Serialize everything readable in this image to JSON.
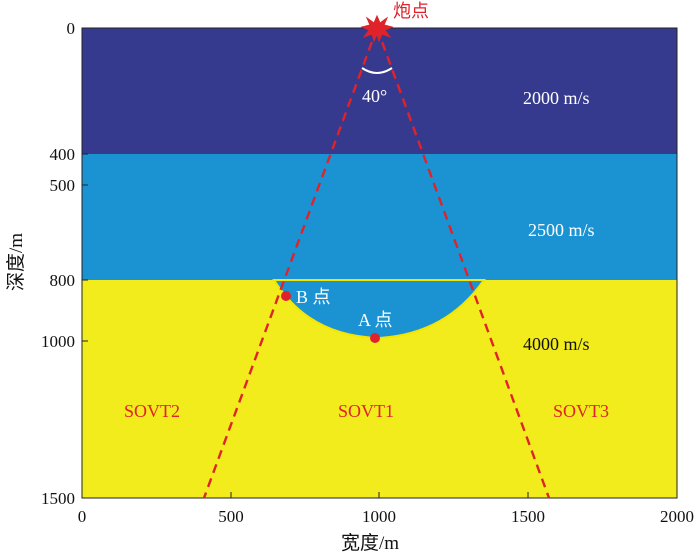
{
  "figure": {
    "source_label": "炮点",
    "angle_label": "40°",
    "point_a_label": "A 点",
    "point_b_label": "B 点",
    "x_axis_title": "宽度/m",
    "y_axis_title": "深度/m",
    "x_ticks": [
      "0",
      "500",
      "1000",
      "1500",
      "2000"
    ],
    "y_ticks": [
      "0",
      "400",
      "500",
      "800",
      "1000",
      "1500"
    ],
    "layers": [
      {
        "velocity_label": "2000 m/s",
        "top_m": 0,
        "bottom_m": 400,
        "color": "#363a8e"
      },
      {
        "velocity_label": "2500 m/s",
        "top_m": 400,
        "bottom_m": 800,
        "color": "#1b93d3"
      },
      {
        "velocity_label": "4000 m/s",
        "top_m": 800,
        "bottom_m": 1500,
        "color": "#f2ec1c"
      }
    ],
    "zones": [
      {
        "label": "SOVT2"
      },
      {
        "label": "SOVT1"
      },
      {
        "label": "SOVT3"
      }
    ],
    "source_point_m": {
      "x": 1000,
      "z": 0
    },
    "point_a_m": {
      "x": 1000,
      "z": 990
    },
    "point_b_m": {
      "x": 690,
      "z": 850
    },
    "basin_m": {
      "left_x": 650,
      "right_x": 1350,
      "top_z": 800,
      "bottom_z": 990
    },
    "fan_angle_deg": 40,
    "x_range_m": [
      0,
      2000
    ],
    "z_range_m": [
      0,
      1500
    ],
    "colors": {
      "accent_red": "#e0222a",
      "ray_red": "#e0222a",
      "basin_rim": "#f5e600"
    }
  }
}
